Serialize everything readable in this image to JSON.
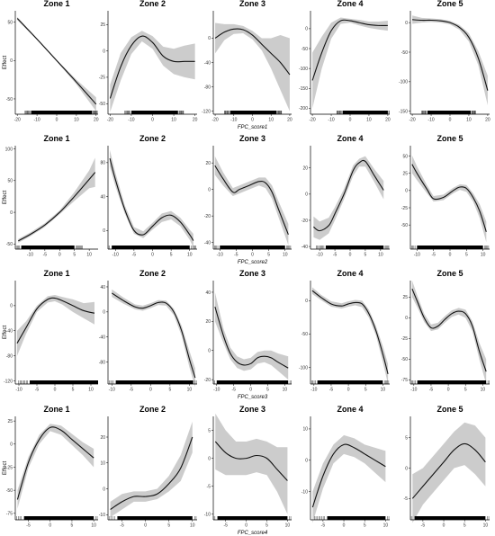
{
  "row_xlabels": [
    "FPC_score1",
    "FPC_score2",
    "FPC_score3",
    "FPC_score4"
  ],
  "ylabel": "Effect",
  "colors": {
    "band": "#cccccc",
    "line": "#111111",
    "axis": "#000000",
    "rug": "#000000"
  },
  "chart_data": [
    {
      "type": "line",
      "title": "Zone 1",
      "row": 0,
      "col": 0,
      "xlabel": "FPC_score1",
      "ylabel": "Effect",
      "xlim": [
        -21,
        21
      ],
      "ylim": [
        -70,
        65
      ],
      "xticks": [
        -20,
        -10,
        0,
        10,
        20
      ],
      "yticks": [
        50,
        0,
        -50
      ],
      "rug": [
        -13,
        18
      ],
      "x": [
        -20,
        -10,
        0,
        10,
        20
      ],
      "y": [
        55,
        28,
        0,
        -28,
        -57
      ],
      "lower": [
        53,
        27,
        -1,
        -31,
        -66
      ],
      "upper": [
        57,
        29,
        1,
        -25,
        -48
      ]
    },
    {
      "type": "line",
      "title": "Zone 2",
      "row": 0,
      "col": 1,
      "xlabel": "FPC_score1",
      "ylabel": "Effect",
      "xlim": [
        -21,
        21
      ],
      "ylim": [
        -60,
        38
      ],
      "xticks": [
        -20,
        -10,
        0,
        10,
        20
      ],
      "yticks": [
        25,
        0,
        -25,
        -50
      ],
      "rug": [
        -10,
        12
      ],
      "x": [
        -20,
        -15,
        -10,
        -5,
        0,
        5,
        10,
        15,
        20
      ],
      "y": [
        -45,
        -15,
        5,
        14,
        8,
        -5,
        -10,
        -10,
        -10
      ],
      "lower": [
        -58,
        -28,
        -3,
        9,
        2,
        -14,
        -22,
        -25,
        -27
      ],
      "upper": [
        -32,
        -2,
        13,
        19,
        14,
        4,
        2,
        5,
        7
      ]
    },
    {
      "type": "line",
      "title": "Zone 3",
      "row": 0,
      "col": 2,
      "xlabel": "FPC_score1",
      "ylabel": "Effect",
      "xlim": [
        -21,
        21
      ],
      "ylim": [
        -125,
        45
      ],
      "xticks": [
        -20,
        -10,
        0,
        10,
        20
      ],
      "yticks": [
        0,
        -40,
        -80,
        -120
      ],
      "rug": [
        -12,
        13
      ],
      "x": [
        -20,
        -15,
        -10,
        -5,
        0,
        5,
        10,
        15,
        20
      ],
      "y": [
        0,
        10,
        15,
        14,
        5,
        -10,
        -25,
        -40,
        -60
      ],
      "lower": [
        -25,
        -3,
        7,
        8,
        -2,
        -20,
        -50,
        -85,
        -120
      ],
      "upper": [
        25,
        23,
        23,
        20,
        12,
        0,
        0,
        5,
        0
      ]
    },
    {
      "type": "line",
      "title": "Zone 4",
      "row": 0,
      "col": 3,
      "xlabel": "FPC_score1",
      "ylabel": "Effect",
      "xlim": [
        -21,
        21
      ],
      "ylim": [
        -215,
        45
      ],
      "xticks": [
        -20,
        -10,
        0,
        10,
        20
      ],
      "yticks": [
        0,
        -50,
        -100,
        -150,
        -200
      ],
      "rug": [
        -4,
        20
      ],
      "x": [
        -20,
        -15,
        -10,
        -5,
        0,
        5,
        10,
        15,
        20
      ],
      "y": [
        -130,
        -60,
        -5,
        20,
        20,
        15,
        10,
        8,
        8
      ],
      "lower": [
        -200,
        -100,
        -25,
        12,
        15,
        8,
        2,
        -2,
        -5
      ],
      "upper": [
        -60,
        -20,
        15,
        28,
        25,
        22,
        18,
        18,
        20
      ]
    },
    {
      "type": "line",
      "title": "Zone 5",
      "row": 0,
      "col": 4,
      "xlabel": "FPC_score1",
      "ylabel": "Effect",
      "xlim": [
        -21,
        21
      ],
      "ylim": [
        -155,
        20
      ],
      "xticks": [
        -20,
        -10,
        0,
        10,
        20
      ],
      "yticks": [
        0,
        -50,
        -100,
        -150
      ],
      "rug": [
        -12,
        11
      ],
      "x": [
        -20,
        -15,
        -10,
        -5,
        0,
        5,
        10,
        15,
        20
      ],
      "y": [
        5,
        4,
        4,
        3,
        0,
        -8,
        -25,
        -60,
        -115
      ],
      "lower": [
        -2,
        0,
        1,
        0,
        -3,
        -12,
        -32,
        -72,
        -140
      ],
      "upper": [
        12,
        8,
        7,
        6,
        3,
        -4,
        -18,
        -48,
        -90
      ]
    },
    {
      "type": "line",
      "title": "Zone 1",
      "row": 1,
      "col": 0,
      "xlabel": "FPC_score2",
      "ylabel": "Effect",
      "xlim": [
        -15,
        13
      ],
      "ylim": [
        -58,
        105
      ],
      "xticks": [
        -10,
        -5,
        0,
        5,
        10
      ],
      "yticks": [
        100,
        50,
        0,
        -50
      ],
      "rug": [
        -13,
        5
      ],
      "x": [
        -14,
        -10,
        -5,
        0,
        5,
        10,
        12
      ],
      "y": [
        -45,
        -35,
        -20,
        0,
        25,
        52,
        63
      ],
      "lower": [
        -48,
        -38,
        -23,
        -3,
        18,
        38,
        40
      ],
      "upper": [
        -42,
        -32,
        -17,
        3,
        32,
        66,
        86
      ]
    },
    {
      "type": "line",
      "title": "Zone 2",
      "row": 1,
      "col": 1,
      "xlabel": "FPC_score2",
      "ylabel": "Effect",
      "xlim": [
        -12,
        12
      ],
      "ylim": [
        -22,
        100
      ],
      "xticks": [
        -10,
        -5,
        0,
        5,
        10
      ],
      "yticks": [
        80,
        40,
        0
      ],
      "rug": [
        -11,
        10
      ],
      "x": [
        -11.5,
        -10,
        -7.5,
        -5,
        -2.5,
        0,
        2.5,
        5,
        7.5,
        10,
        11
      ],
      "y": [
        85,
        60,
        25,
        0,
        -5,
        5,
        15,
        18,
        10,
        -5,
        -12
      ],
      "lower": [
        75,
        52,
        20,
        -4,
        -9,
        1,
        10,
        13,
        5,
        -11,
        -20
      ],
      "upper": [
        95,
        68,
        30,
        4,
        -1,
        9,
        20,
        23,
        15,
        1,
        -4
      ]
    },
    {
      "type": "line",
      "title": "Zone 3",
      "row": 1,
      "col": 2,
      "xlabel": "FPC_score2",
      "ylabel": "Effect",
      "xlim": [
        -12,
        12
      ],
      "ylim": [
        -45,
        33
      ],
      "xticks": [
        -10,
        -5,
        0,
        5,
        10
      ],
      "yticks": [
        20,
        0,
        -20,
        -40
      ],
      "rug": [
        -10,
        10
      ],
      "x": [
        -11.5,
        -9,
        -6,
        -4,
        -1,
        2,
        4,
        6,
        8,
        11
      ],
      "y": [
        18,
        8,
        -2,
        0,
        3,
        6,
        5,
        -2,
        -15,
        -34
      ],
      "lower": [
        11,
        3,
        -5,
        -3,
        0,
        3,
        1,
        -7,
        -21,
        -42
      ],
      "upper": [
        25,
        13,
        1,
        3,
        6,
        9,
        9,
        3,
        -9,
        -26
      ]
    },
    {
      "type": "line",
      "title": "Zone 4",
      "row": 1,
      "col": 3,
      "xlabel": "FPC_score2",
      "ylabel": "Effect",
      "xlim": [
        -13,
        13
      ],
      "ylim": [
        -42,
        37
      ],
      "xticks": [
        -10,
        -5,
        0,
        5,
        10
      ],
      "yticks": [
        20,
        0,
        -20,
        -40
      ],
      "rug": [
        -8,
        11
      ],
      "x": [
        -12,
        -10,
        -7,
        -5,
        -2,
        1,
        3,
        5,
        8,
        11
      ],
      "y": [
        -25,
        -28,
        -24,
        -15,
        0,
        18,
        24,
        25,
        14,
        3
      ],
      "lower": [
        -33,
        -35,
        -30,
        -20,
        -4,
        14,
        21,
        21,
        9,
        -4
      ],
      "upper": [
        -17,
        -21,
        -18,
        -10,
        4,
        22,
        27,
        29,
        19,
        10
      ]
    },
    {
      "type": "line",
      "title": "Zone 5",
      "row": 1,
      "col": 4,
      "xlabel": "FPC_score2",
      "ylabel": "Effect",
      "xlim": [
        -12,
        12
      ],
      "ylim": [
        -85,
        65
      ],
      "xticks": [
        -10,
        -5,
        0,
        5,
        10
      ],
      "yticks": [
        50,
        25,
        0,
        -25,
        -50
      ],
      "rug": [
        -10,
        10
      ],
      "x": [
        -11.5,
        -10,
        -7,
        -5,
        -2,
        1,
        3,
        5,
        7,
        9,
        11
      ],
      "y": [
        38,
        25,
        2,
        -12,
        -10,
        0,
        5,
        3,
        -10,
        -30,
        -60
      ],
      "lower": [
        25,
        15,
        -4,
        -16,
        -14,
        -4,
        1,
        -2,
        -16,
        -40,
        -75
      ],
      "upper": [
        51,
        35,
        8,
        -8,
        -6,
        4,
        9,
        8,
        -4,
        -20,
        -45
      ]
    },
    {
      "type": "line",
      "title": "Zone 1",
      "row": 2,
      "col": 0,
      "xlabel": "FPC_score3",
      "ylabel": "Effect",
      "xlim": [
        -11,
        12
      ],
      "ylim": [
        -125,
        40
      ],
      "xticks": [
        -10,
        -5,
        0,
        5,
        10
      ],
      "yticks": [
        0,
        -40,
        -80,
        -120
      ],
      "rug": [
        -7,
        12
      ],
      "x": [
        -10.5,
        -8,
        -5,
        -2,
        0,
        2,
        5,
        8,
        11
      ],
      "y": [
        -60,
        -35,
        -5,
        10,
        12,
        8,
        0,
        -8,
        -12
      ],
      "lower": [
        -80,
        -45,
        -10,
        5,
        7,
        2,
        -10,
        -20,
        -30
      ],
      "upper": [
        -40,
        -25,
        0,
        15,
        17,
        14,
        10,
        4,
        6
      ]
    },
    {
      "type": "line",
      "title": "Zone 2",
      "row": 2,
      "col": 1,
      "xlabel": "FPC_score3",
      "ylabel": "Effect",
      "xlim": [
        -11,
        12
      ],
      "ylim": [
        -115,
        50
      ],
      "xticks": [
        -10,
        -5,
        0,
        5,
        10
      ],
      "yticks": [
        40,
        0,
        -40,
        -80
      ],
      "rug": [
        -9,
        11
      ],
      "x": [
        -10,
        -7,
        -4,
        -2,
        0,
        2,
        4,
        6,
        8,
        10,
        11.5
      ],
      "y": [
        30,
        18,
        8,
        6,
        10,
        15,
        14,
        0,
        -30,
        -75,
        -105
      ],
      "lower": [
        24,
        13,
        4,
        2,
        6,
        11,
        10,
        -5,
        -38,
        -88,
        -120
      ],
      "upper": [
        36,
        23,
        12,
        10,
        14,
        19,
        18,
        5,
        -22,
        -62,
        -90
      ]
    },
    {
      "type": "line",
      "title": "Zone 3",
      "row": 2,
      "col": 2,
      "xlabel": "FPC_score3",
      "ylabel": "Effect",
      "xlim": [
        -11,
        12
      ],
      "ylim": [
        -23,
        48
      ],
      "xticks": [
        -10,
        -5,
        0,
        5,
        10
      ],
      "yticks": [
        40,
        20,
        0,
        -20
      ],
      "rug": [
        -10,
        11
      ],
      "x": [
        -10.5,
        -8,
        -6,
        -4,
        -2,
        0,
        2,
        4,
        6,
        8,
        11
      ],
      "y": [
        30,
        10,
        -2,
        -8,
        -10,
        -9,
        -5,
        -4,
        -5,
        -8,
        -12
      ],
      "lower": [
        20,
        5,
        -6,
        -12,
        -14,
        -13,
        -9,
        -8,
        -10,
        -14,
        -20
      ],
      "upper": [
        40,
        15,
        2,
        -4,
        -6,
        -5,
        -1,
        0,
        0,
        -2,
        -4
      ]
    },
    {
      "type": "line",
      "title": "Zone 4",
      "row": 2,
      "col": 3,
      "xlabel": "FPC_score3",
      "ylabel": "Effect",
      "xlim": [
        -11,
        12
      ],
      "ylim": [
        -125,
        30
      ],
      "xticks": [
        -10,
        -5,
        0,
        5,
        10
      ],
      "yticks": [
        0,
        -50,
        -100
      ],
      "rug": [
        -9,
        10
      ],
      "x": [
        -10.5,
        -8,
        -5,
        -2,
        0,
        2,
        4,
        6,
        8,
        10,
        11.5
      ],
      "y": [
        15,
        5,
        -5,
        -8,
        -5,
        -3,
        -5,
        -20,
        -45,
        -80,
        -110
      ],
      "lower": [
        10,
        1,
        -9,
        -12,
        -9,
        -7,
        -10,
        -26,
        -52,
        -92,
        -125
      ],
      "upper": [
        20,
        9,
        -1,
        -4,
        -1,
        1,
        0,
        -14,
        -38,
        -68,
        -95
      ]
    },
    {
      "type": "line",
      "title": "Zone 5",
      "row": 2,
      "col": 4,
      "xlabel": "FPC_score3",
      "ylabel": "Effect",
      "xlim": [
        -11,
        12
      ],
      "ylim": [
        -80,
        45
      ],
      "xticks": [
        -10,
        -5,
        0,
        5,
        10
      ],
      "yticks": [
        25,
        0,
        -25,
        -50,
        -75
      ],
      "rug": [
        -9,
        11
      ],
      "x": [
        -10.5,
        -9,
        -7,
        -5,
        -3,
        -1,
        1,
        3,
        5,
        7,
        9,
        11
      ],
      "y": [
        35,
        20,
        0,
        -12,
        -10,
        -2,
        5,
        8,
        5,
        -10,
        -40,
        -65
      ],
      "lower": [
        25,
        13,
        -5,
        -16,
        -14,
        -6,
        1,
        4,
        0,
        -16,
        -50,
        -80
      ],
      "upper": [
        45,
        27,
        5,
        -8,
        -6,
        2,
        9,
        12,
        10,
        -4,
        -30,
        -50
      ]
    },
    {
      "type": "line",
      "title": "Zone 1",
      "row": 3,
      "col": 0,
      "xlabel": "FPC_score4",
      "ylabel": "Effect",
      "xlim": [
        -8,
        11
      ],
      "ylim": [
        -82,
        30
      ],
      "xticks": [
        -5,
        0,
        5,
        10
      ],
      "yticks": [
        25,
        0,
        -25,
        -50,
        -75
      ],
      "rug": [
        -6,
        10
      ],
      "x": [
        -7.5,
        -5,
        -2.5,
        0,
        2.5,
        5,
        7.5,
        10
      ],
      "y": [
        -60,
        -20,
        5,
        18,
        15,
        5,
        -5,
        -15
      ],
      "lower": [
        -70,
        -26,
        0,
        14,
        10,
        -1,
        -12,
        -25
      ],
      "upper": [
        -50,
        -14,
        10,
        22,
        20,
        11,
        2,
        -5
      ]
    },
    {
      "type": "line",
      "title": "Zone 2",
      "row": 3,
      "col": 1,
      "xlabel": "FPC_score4",
      "ylabel": "Effect",
      "xlim": [
        -8,
        11
      ],
      "ylim": [
        -12,
        28
      ],
      "xticks": [
        -5,
        0,
        5,
        10
      ],
      "yticks": [
        20,
        10,
        0,
        -10
      ],
      "rug": [
        -6,
        10
      ],
      "x": [
        -7.5,
        -5,
        -2.5,
        0,
        2.5,
        5,
        7.5,
        10
      ],
      "y": [
        -8,
        -5,
        -3,
        -3,
        -2,
        2,
        8,
        20
      ],
      "lower": [
        -11,
        -8,
        -5,
        -5,
        -4,
        -1,
        3,
        14
      ],
      "upper": [
        -5,
        -2,
        -1,
        -1,
        0,
        5,
        13,
        26
      ]
    },
    {
      "type": "line",
      "title": "Zone 3",
      "row": 3,
      "col": 2,
      "xlabel": "FPC_score4",
      "ylabel": "Effect",
      "xlim": [
        -8,
        11
      ],
      "ylim": [
        -11,
        7.5
      ],
      "xticks": [
        -5,
        0,
        5,
        10
      ],
      "yticks": [
        5,
        0,
        -5,
        -10
      ],
      "rug": [
        -7,
        10
      ],
      "x": [
        -7.5,
        -5,
        -2.5,
        0,
        2.5,
        5,
        7.5,
        10
      ],
      "y": [
        3,
        1,
        0,
        0,
        0.5,
        0,
        -2,
        -4
      ],
      "lower": [
        -2,
        -3,
        -3,
        -3,
        -2.5,
        -3,
        -6,
        -10
      ],
      "upper": [
        8,
        5,
        3,
        3,
        3.5,
        3,
        2,
        2
      ]
    },
    {
      "type": "line",
      "title": "Zone 4",
      "row": 3,
      "col": 3,
      "xlabel": "FPC_score4",
      "ylabel": "Effect",
      "xlim": [
        -8,
        11
      ],
      "ylim": [
        -19,
        14
      ],
      "xticks": [
        -5,
        0,
        5,
        10
      ],
      "yticks": [
        10,
        0,
        -10
      ],
      "rug": [
        -4,
        10
      ],
      "x": [
        -7.5,
        -5,
        -2.5,
        0,
        2.5,
        5,
        7.5,
        10
      ],
      "y": [
        -15,
        -5,
        2,
        5,
        4,
        2,
        0,
        -2
      ],
      "lower": [
        -20,
        -9,
        -1,
        2,
        1,
        -1,
        -4,
        -7
      ],
      "upper": [
        -10,
        -1,
        5,
        8,
        7,
        5,
        4,
        3
      ]
    },
    {
      "type": "line",
      "title": "Zone 5",
      "row": 3,
      "col": 4,
      "xlabel": "FPC_score4",
      "ylabel": "Effect",
      "xlim": [
        -8,
        11
      ],
      "ylim": [
        -8.5,
        8.5
      ],
      "xticks": [
        -5,
        0,
        5,
        10
      ],
      "yticks": [
        5,
        0,
        -5
      ],
      "rug": [
        -7,
        10
      ],
      "x": [
        -7.5,
        -5,
        -2.5,
        0,
        2.5,
        5,
        7.5,
        10
      ],
      "y": [
        -5,
        -3,
        -1,
        1,
        3,
        4,
        3,
        1
      ],
      "lower": [
        -9,
        -6,
        -4,
        -2,
        0,
        0.5,
        -1,
        -3
      ],
      "upper": [
        -1,
        0,
        2,
        4,
        6,
        7.5,
        7,
        5
      ]
    }
  ]
}
